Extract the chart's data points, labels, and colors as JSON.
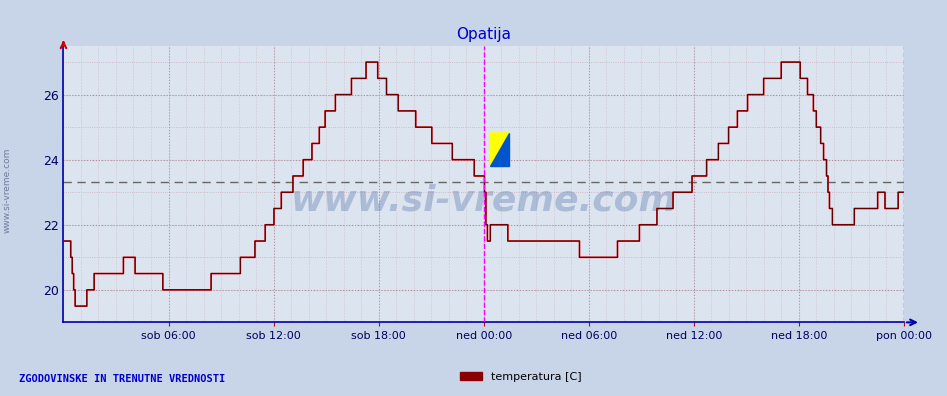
{
  "title": "Opatija",
  "title_color": "#0000cc",
  "bg_color": "#c8d4e8",
  "plot_bg_color": "#dce4f0",
  "line_color": "#cc0000",
  "line_color2": "#330000",
  "ylabel_left": "www.si-vreme.com",
  "footer_left": "ZGODOVINSKE IN TRENUTNE VREDNOSTI",
  "legend_label": "temperatura [C]",
  "legend_color": "#880000",
  "vline_color": "#ff00ff",
  "hline_color": "#666666",
  "hline_y": 23.3,
  "yticks": [
    20,
    22,
    24,
    26
  ],
  "ylim": [
    19.0,
    27.5
  ],
  "xtick_labels": [
    "sob 06:00",
    "sob 12:00",
    "sob 18:00",
    "ned 00:00",
    "ned 06:00",
    "ned 12:00",
    "ned 18:00",
    "pon 00:00"
  ],
  "num_points": 576,
  "watermark_text": "www.si-vreme.com",
  "watermark_color": "#4060a0",
  "watermark_alpha": 0.3,
  "spine_color": "#0000aa",
  "arrow_color_y": "#cc0000",
  "arrow_color_x": "#0000aa",
  "grid_major_color": "#b090a0",
  "grid_minor_color": "#c8b0b8",
  "tick_color_x": "#cc0000"
}
